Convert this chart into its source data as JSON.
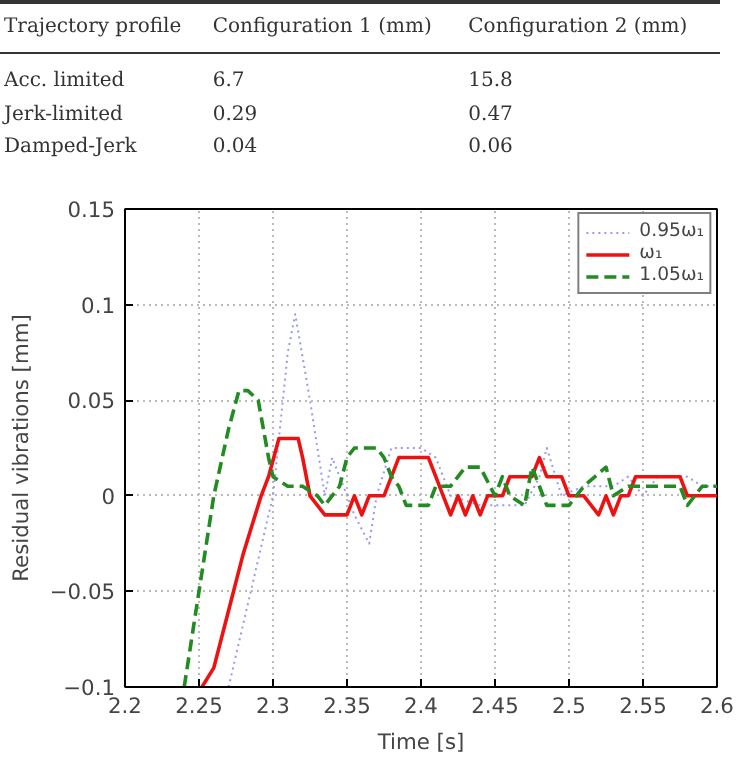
{
  "chart_data": {
    "type": "line",
    "annotations": [
      "Trajectory profile",
      "Configuration 1 (mm)",
      "Configuration 2 (mm)",
      "Acc. limited",
      "6.7",
      "15.8",
      "Jerk-limited",
      "0.29",
      "0.47",
      "Damped-Jerk",
      "0.04",
      "0.06"
    ],
    "xlabel": "Time [s]",
    "ylabel": "Residual vibrations [mm]",
    "xlim": [
      2.2,
      2.6
    ],
    "xticks": [
      2.2,
      2.25,
      2.3,
      2.35,
      2.4,
      2.45,
      2.5,
      2.55,
      2.6
    ],
    "ylim": [
      -0.1,
      0.15
    ],
    "yticks": [
      {
        "value": -0.1,
        "label": "−0.1"
      },
      {
        "value": -0.05,
        "label": "−0.05"
      },
      0,
      0.05,
      0.1,
      0.15
    ],
    "grid": true,
    "legend": "top right",
    "series": [
      {
        "name": "0.95ω₁",
        "color": "#9999ee",
        "line_style": "dotted",
        "x": [
          2.27,
          2.285,
          2.3,
          2.31,
          2.315,
          2.325,
          2.335,
          2.34,
          2.355,
          2.365,
          2.37,
          2.38,
          2.4,
          2.41,
          2.42,
          2.44,
          2.47,
          2.48,
          2.485,
          2.495,
          2.51,
          2.53,
          2.54,
          2.55,
          2.56,
          2.58,
          2.59,
          2.6
        ],
        "values": [
          -0.1,
          -0.05,
          0.0,
          0.075,
          0.095,
          0.05,
          0.0,
          0.02,
          -0.01,
          -0.025,
          0.0,
          0.025,
          0.025,
          0.02,
          0.0,
          -0.005,
          -0.005,
          0.01,
          0.025,
          0.0,
          0.005,
          0.005,
          0.01,
          0.0,
          0.01,
          0.01,
          0.005,
          0.005
        ]
      },
      {
        "name": "ω₁",
        "color": "#ee1111",
        "line_style": "solid",
        "x": [
          2.252,
          2.26,
          2.27,
          2.28,
          2.292,
          2.297,
          2.304,
          2.317,
          2.32,
          2.325,
          2.335,
          2.35,
          2.355,
          2.36,
          2.365,
          2.375,
          2.38,
          2.385,
          2.405,
          2.41,
          2.415,
          2.42,
          2.425,
          2.43,
          2.435,
          2.44,
          2.445,
          2.455,
          2.46,
          2.465,
          2.475,
          2.48,
          2.485,
          2.495,
          2.5,
          2.51,
          2.52,
          2.525,
          2.53,
          2.535,
          2.54,
          2.545,
          2.575,
          2.58,
          2.6
        ],
        "values": [
          -0.1,
          -0.09,
          -0.06,
          -0.03,
          0.0,
          0.01,
          0.03,
          0.03,
          0.02,
          0.0,
          -0.01,
          -0.01,
          0.0,
          -0.01,
          0.0,
          0.0,
          0.01,
          0.02,
          0.02,
          0.01,
          0.0,
          -0.01,
          0.0,
          -0.01,
          0.0,
          -0.01,
          0.0,
          0.0,
          0.01,
          0.01,
          0.01,
          0.02,
          0.01,
          0.01,
          0.0,
          0.0,
          -0.01,
          0.0,
          -0.01,
          0.0,
          0.0,
          0.01,
          0.01,
          0.0,
          0.0
        ]
      },
      {
        "name": "1.05ω₁",
        "color": "#228b22",
        "line_style": "dashed",
        "x": [
          2.24,
          2.25,
          2.26,
          2.27,
          2.277,
          2.283,
          2.29,
          2.297,
          2.3,
          2.31,
          2.32,
          2.33,
          2.335,
          2.345,
          2.35,
          2.355,
          2.37,
          2.375,
          2.38,
          2.385,
          2.39,
          2.405,
          2.41,
          2.42,
          2.43,
          2.44,
          2.45,
          2.455,
          2.46,
          2.47,
          2.475,
          2.48,
          2.485,
          2.5,
          2.51,
          2.525,
          2.53,
          2.54,
          2.575,
          2.58,
          2.59,
          2.6
        ],
        "values": [
          -0.1,
          -0.05,
          0.0,
          0.035,
          0.055,
          0.055,
          0.05,
          0.02,
          0.01,
          0.005,
          0.005,
          0.0,
          -0.005,
          0.005,
          0.02,
          0.025,
          0.025,
          0.02,
          0.01,
          0.005,
          -0.005,
          -0.005,
          0.005,
          0.005,
          0.015,
          0.015,
          0.0,
          0.01,
          0.0,
          -0.005,
          0.015,
          0.005,
          -0.005,
          -0.005,
          0.005,
          0.015,
          0.0,
          0.005,
          0.005,
          -0.005,
          0.005,
          0.005
        ]
      }
    ]
  }
}
